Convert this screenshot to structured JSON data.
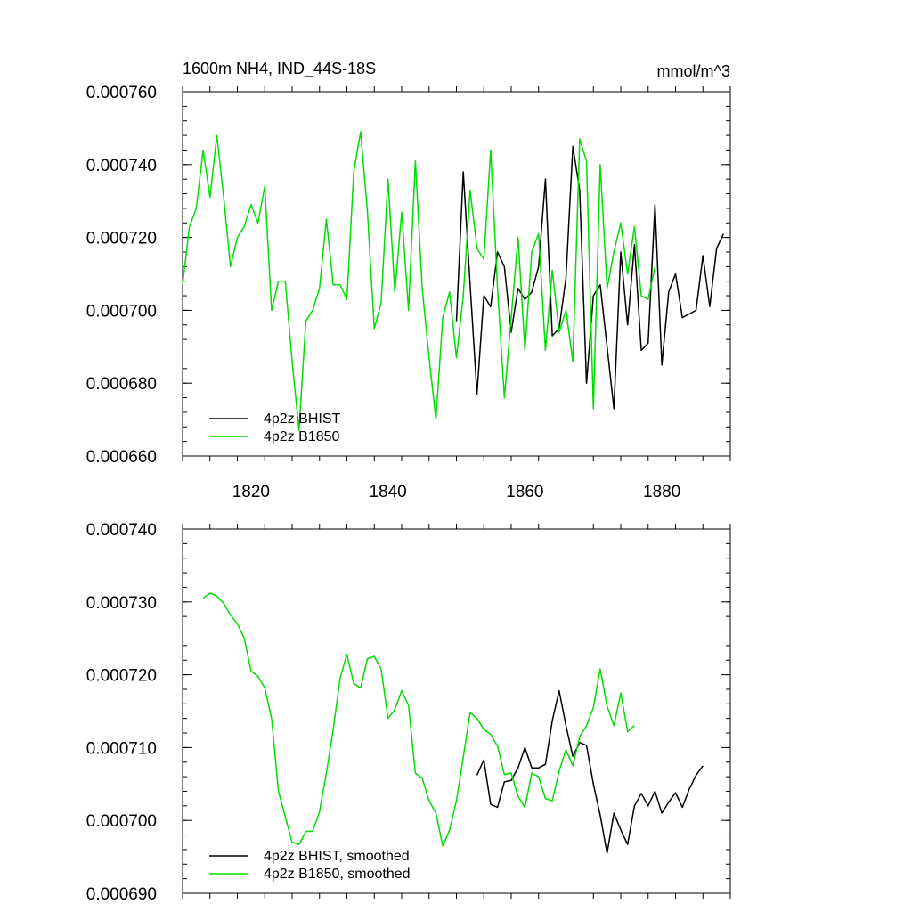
{
  "chart_data": [
    {
      "type": "line",
      "title": "1600m NH4, IND_44S-18S",
      "units": "mmol/m^3",
      "ylim": [
        0.00066,
        0.00076
      ],
      "xlim": [
        1810,
        1890
      ],
      "yticks": [
        "0.000660",
        "0.000680",
        "0.000700",
        "0.000720",
        "0.000740",
        "0.000760"
      ],
      "yticks_values": [
        0.00066,
        0.00068,
        0.0007,
        0.00072,
        0.00074,
        0.00076
      ],
      "xticks": [
        "1820",
        "1840",
        "1860",
        "1880"
      ],
      "xticks_values": [
        1820,
        1840,
        1860,
        1880
      ],
      "legend_position": "bottom-left",
      "series": [
        {
          "name": "4p2z BHIST",
          "color": "#000000",
          "start": 1850,
          "values": [
            0.000697,
            0.000738,
            0.000707,
            0.000677,
            0.000704,
            0.000701,
            0.000716,
            0.000712,
            0.000694,
            0.000706,
            0.000703,
            0.000705,
            0.000712,
            0.000736,
            0.000693,
            0.000695,
            0.000709,
            0.000745,
            0.000733,
            0.00068,
            0.000704,
            0.000707,
            0.00069,
            0.000673,
            0.000716,
            0.000696,
            0.000718,
            0.000689,
            0.000691,
            0.000729,
            0.000685,
            0.000705,
            0.00071,
            0.000698,
            0.000699,
            0.0007,
            0.000715,
            0.000701,
            0.000717,
            0.000721
          ]
        },
        {
          "name": "4p2z B1850",
          "color": "#00dd00",
          "start": 1810,
          "values": [
            0.000707,
            0.000723,
            0.000728,
            0.000744,
            0.000731,
            0.000748,
            0.000731,
            0.000712,
            0.00072,
            0.000723,
            0.000729,
            0.000724,
            0.000734,
            0.0007,
            0.000708,
            0.000708,
            0.000686,
            0.000667,
            0.000697,
            0.0007,
            0.000706,
            0.000725,
            0.000707,
            0.000707,
            0.000703,
            0.000738,
            0.000749,
            0.000727,
            0.000695,
            0.000702,
            0.000736,
            0.000705,
            0.000727,
            0.0007,
            0.000741,
            0.000706,
            0.000687,
            0.00067,
            0.000698,
            0.000705,
            0.000687,
            0.000704,
            0.000733,
            0.000717,
            0.000714,
            0.000744,
            0.000706,
            0.000676,
            0.000698,
            0.00072,
            0.000689,
            0.000716,
            0.000721,
            0.000689,
            0.000711,
            0.000694,
            0.0007,
            0.000686,
            0.000747,
            0.000741,
            0.000673,
            0.00074,
            0.000706,
            0.000716,
            0.000724,
            0.00071,
            0.000723,
            0.000704,
            0.000703,
            0.000712
          ]
        }
      ]
    },
    {
      "type": "line",
      "ylim": [
        0.00069,
        0.00074
      ],
      "xlim": [
        1810,
        1890
      ],
      "yticks": [
        "0.000690",
        "0.000700",
        "0.000710",
        "0.000720",
        "0.000730",
        "0.000740"
      ],
      "yticks_values": [
        0.00069,
        0.0007,
        0.00071,
        0.00072,
        0.00073,
        0.00074
      ],
      "xticks_values": [
        1820,
        1840,
        1860,
        1880
      ],
      "legend_position": "bottom-left",
      "series": [
        {
          "name": "4p2z BHIST, smoothed",
          "color": "#000000",
          "start": 1853,
          "values": [
            0.0007062,
            0.0007083,
            0.0007022,
            0.0007018,
            0.0007053,
            0.0007055,
            0.0007072,
            0.00071,
            0.0007072,
            0.0007072,
            0.0007077,
            0.0007137,
            0.0007178,
            0.000713,
            0.0007088,
            0.0007107,
            0.0007103,
            0.000705,
            0.0007007,
            0.0006955,
            0.000701,
            0.0006987,
            0.0006967,
            0.000702,
            0.0007037,
            0.000702,
            0.000704,
            0.000701,
            0.0007025,
            0.0007038,
            0.0007018,
            0.0007043,
            0.0007062,
            0.0007075
          ]
        },
        {
          "name": "4p2z B1850, smoothed",
          "color": "#00dd00",
          "start": 1813,
          "values": [
            0.0007305,
            0.0007312,
            0.0007308,
            0.0007298,
            0.0007282,
            0.000727,
            0.000725,
            0.0007205,
            0.0007198,
            0.0007182,
            0.000714,
            0.000704,
            0.0007005,
            0.000697,
            0.0006967,
            0.0006985,
            0.0006985,
            0.0007012,
            0.0007065,
            0.0007125,
            0.0007195,
            0.0007228,
            0.0007188,
            0.0007182,
            0.0007222,
            0.0007225,
            0.0007208,
            0.000714,
            0.0007152,
            0.0007178,
            0.0007158,
            0.0007065,
            0.0007058,
            0.0007027,
            0.000701,
            0.0006965,
            0.0006987,
            0.0007027,
            0.0007087,
            0.0007148,
            0.000714,
            0.0007125,
            0.0007118,
            0.0007102,
            0.0007063,
            0.0007065,
            0.0007033,
            0.0007018,
            0.0007065,
            0.000706,
            0.000703,
            0.0007027,
            0.0007068,
            0.0007097,
            0.0007075,
            0.0007115,
            0.000713,
            0.0007155,
            0.0007208,
            0.0007157,
            0.000713,
            0.0007175,
            0.0007122,
            0.000713
          ]
        }
      ]
    }
  ]
}
